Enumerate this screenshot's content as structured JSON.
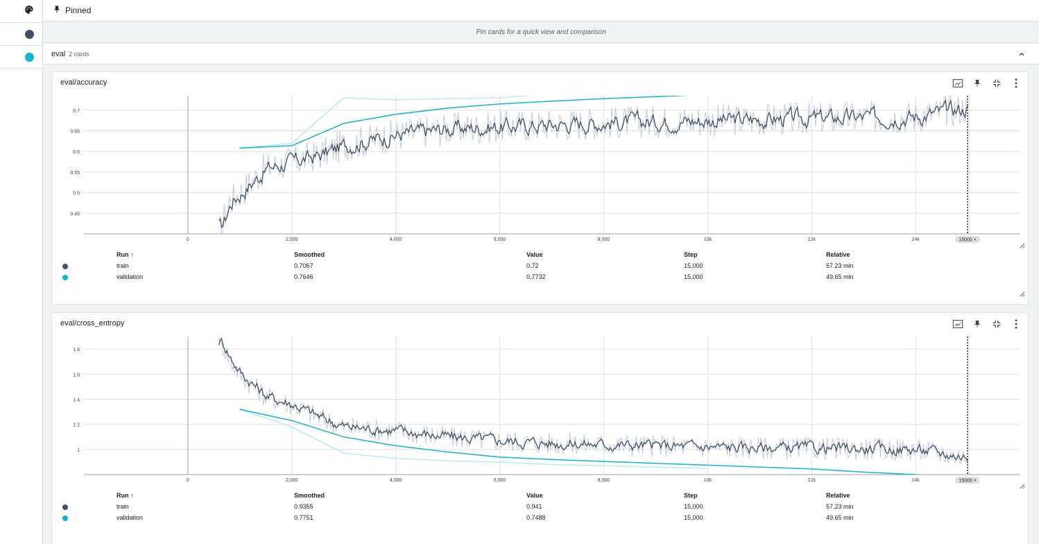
{
  "colors": {
    "train": "#425066",
    "validation": "#12b5cb",
    "train_raw": "#c4ccd8",
    "validation_raw": "#b7ecf2",
    "grid": "#e0e0e0"
  },
  "rail": {
    "icons": [
      "palette-icon"
    ],
    "runs": [
      {
        "name": "train",
        "color": "#425066"
      },
      {
        "name": "validation",
        "color": "#12b5cb"
      }
    ]
  },
  "pinned": {
    "label": "Pinned",
    "hint": "Pin cards for a quick view and comparison"
  },
  "group": {
    "name": "eval",
    "count": "2 cards"
  },
  "table_headers": {
    "run": "Run ↑",
    "smoothed": "Smoothed",
    "value": "Value",
    "step": "Step",
    "relative": "Relative"
  },
  "cards": [
    {
      "title": "eval/accuracy",
      "step_marker": "15000 ×",
      "rows": [
        {
          "run": "train",
          "smoothed": "0.7067",
          "value": "0.72",
          "step": "15,000",
          "relative": "57.23 min"
        },
        {
          "run": "validation",
          "smoothed": "0.7646",
          "value": "0.7732",
          "step": "15,000",
          "relative": "49.65 min"
        }
      ]
    },
    {
      "title": "eval/cross_entropy",
      "step_marker": "15000 ×",
      "rows": [
        {
          "run": "train",
          "smoothed": "0.9355",
          "value": "0.941",
          "step": "15,000",
          "relative": "57.23 min"
        },
        {
          "run": "validation",
          "smoothed": "0.7751",
          "value": "0.7488",
          "step": "15,000",
          "relative": "49.65 min"
        }
      ]
    }
  ],
  "chart_data": [
    {
      "type": "line",
      "title": "eval/accuracy",
      "xlabel": "",
      "ylabel": "",
      "xlim": [
        -2000,
        16000
      ],
      "ylim": [
        0.4,
        0.735
      ],
      "x_ticks": [
        0,
        2000,
        4000,
        6000,
        8000,
        10000,
        12000,
        14000
      ],
      "x_tick_labels": [
        "0",
        "2,000",
        "4,000",
        "6,000",
        "8,000",
        "10k",
        "12k",
        "14k"
      ],
      "y_ticks": [
        0.45,
        0.5,
        0.55,
        0.6,
        0.65,
        0.7
      ],
      "y_tick_labels": [
        "0.45",
        "0.5",
        "0.55",
        "0.6",
        "0.65",
        "0.7"
      ],
      "grid": true,
      "step_marker": 15000,
      "series": [
        {
          "name": "train",
          "smoothed": {
            "x": [
              600,
              800,
              1000,
              1500,
              2000,
              2500,
              3000,
              4000,
              5000,
              6000,
              7000,
              8000,
              10000,
              12000,
              14000,
              15000
            ],
            "y": [
              0.4,
              0.48,
              0.5,
              0.56,
              0.575,
              0.59,
              0.615,
              0.64,
              0.655,
              0.66,
              0.665,
              0.67,
              0.675,
              0.68,
              0.685,
              0.7067
            ]
          },
          "noise": 0.04
        },
        {
          "name": "validation",
          "smoothed": {
            "x": [
              1000,
              2000,
              3000,
              4000,
              5000,
              6000,
              7000,
              8000,
              9000,
              10000,
              11000,
              12000,
              13000,
              14000,
              15000
            ],
            "y": [
              0.608,
              0.614,
              0.668,
              0.69,
              0.705,
              0.715,
              0.722,
              0.728,
              0.733,
              0.738,
              0.742,
              0.747,
              0.752,
              0.758,
              0.7646
            ]
          },
          "raw": {
            "x": [
              1000,
              2000,
              3000,
              4000,
              5000,
              6000,
              7000,
              8000,
              9000,
              10000
            ],
            "y": [
              0.608,
              0.62,
              0.73,
              0.725,
              0.728,
              0.73,
              0.74,
              0.745,
              0.75,
              0.755
            ]
          }
        }
      ]
    },
    {
      "type": "line",
      "title": "eval/cross_entropy",
      "xlabel": "",
      "ylabel": "",
      "xlim": [
        -2000,
        16000
      ],
      "ylim": [
        0.8,
        1.9
      ],
      "x_ticks": [
        0,
        2000,
        4000,
        6000,
        8000,
        10000,
        12000,
        14000
      ],
      "x_tick_labels": [
        "0",
        "2,000",
        "4,000",
        "6,000",
        "8,000",
        "10k",
        "12k",
        "14k"
      ],
      "y_ticks": [
        1,
        1.2,
        1.4,
        1.6,
        1.8
      ],
      "y_tick_labels": [
        "1",
        "1.2",
        "1.4",
        "1.6",
        "1.8"
      ],
      "grid": true,
      "step_marker": 15000,
      "series": [
        {
          "name": "train",
          "smoothed": {
            "x": [
              600,
              800,
              1000,
              1500,
              2000,
              2500,
              3000,
              4000,
              5000,
              6000,
              7000,
              8000,
              10000,
              12000,
              14000,
              15000
            ],
            "y": [
              1.9,
              1.72,
              1.6,
              1.42,
              1.36,
              1.26,
              1.18,
              1.15,
              1.1,
              1.07,
              1.05,
              1.04,
              1.02,
              1.01,
              1.0,
              0.9355
            ]
          },
          "noise": 0.09
        },
        {
          "name": "validation",
          "smoothed": {
            "x": [
              1000,
              2000,
              3000,
              4000,
              5000,
              6000,
              7000,
              8000,
              9000,
              10000,
              11000,
              12000,
              13000,
              14000,
              15000
            ],
            "y": [
              1.32,
              1.23,
              1.1,
              1.03,
              0.98,
              0.94,
              0.92,
              0.905,
              0.89,
              0.875,
              0.86,
              0.845,
              0.82,
              0.8,
              0.7751
            ]
          },
          "raw": {
            "x": [
              1000,
              2000,
              3000,
              4000,
              5000,
              6000,
              7000,
              8000,
              9000,
              10000
            ],
            "y": [
              1.32,
              1.18,
              0.97,
              0.93,
              0.91,
              0.9,
              0.88,
              0.87,
              0.86,
              0.85
            ]
          }
        }
      ]
    }
  ]
}
